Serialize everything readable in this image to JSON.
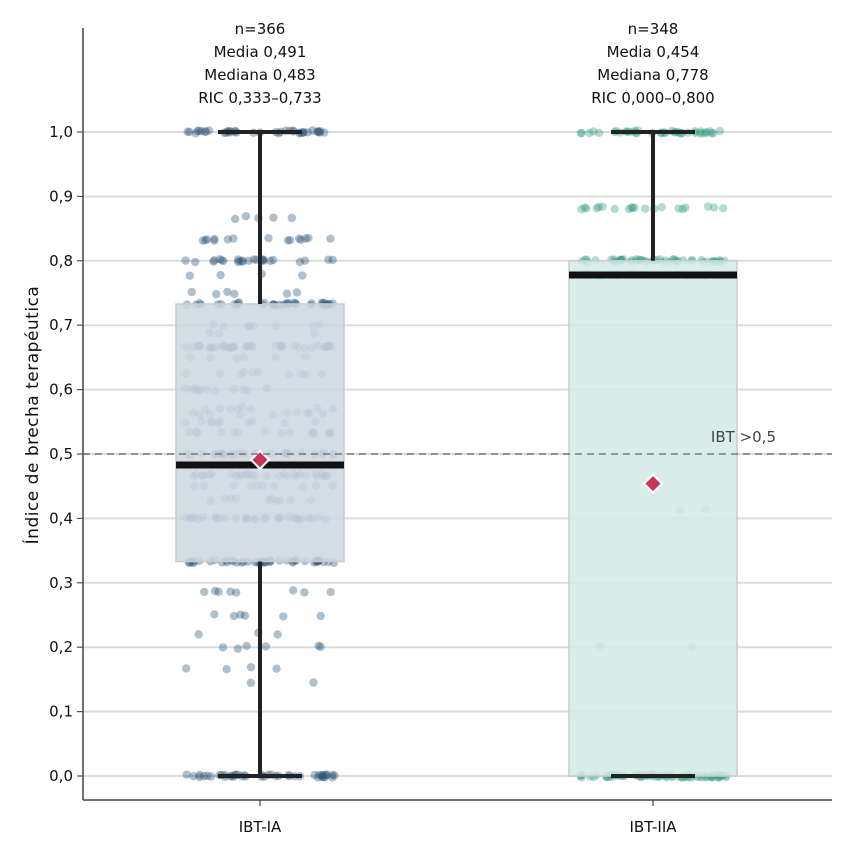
{
  "chart_data": {
    "type": "box",
    "ylabel": "Índice de brecha terapéutica",
    "ylim": [
      0,
      1.0
    ],
    "yticks": [
      "0,0",
      "0,1",
      "0,2",
      "0,3",
      "0,4",
      "0,5",
      "0,6",
      "0,7",
      "0,8",
      "0,9",
      "1,0"
    ],
    "grid": true,
    "reference_line": {
      "y": 0.5,
      "label": "IBT >0,5"
    },
    "groups": [
      {
        "category": "IBT-IA",
        "color": "#2f5878",
        "box_fill": "#cdd7e0",
        "n": 366,
        "mean": 0.491,
        "median": 0.483,
        "q1": 0.333,
        "q3": 0.733,
        "whisker_low": 0.0,
        "whisker_high": 1.0,
        "stats_text": [
          "n=366",
          "Media 0,491",
          "Mediana 0,483",
          "RIC 0,333–0,733"
        ]
      },
      {
        "category": "IBT-IIA",
        "color": "#3a9e85",
        "box_fill": "#d4ebe5",
        "n": 348,
        "mean": 0.454,
        "median": 0.778,
        "q1": 0.0,
        "q3": 0.8,
        "whisker_low": 0.0,
        "whisker_high": 1.0,
        "stats_text": [
          "n=348",
          "Media 0,454",
          "Mediana 0,778",
          "RIC 0,000–0,800"
        ]
      }
    ],
    "mean_marker_color": "#c9345a"
  }
}
